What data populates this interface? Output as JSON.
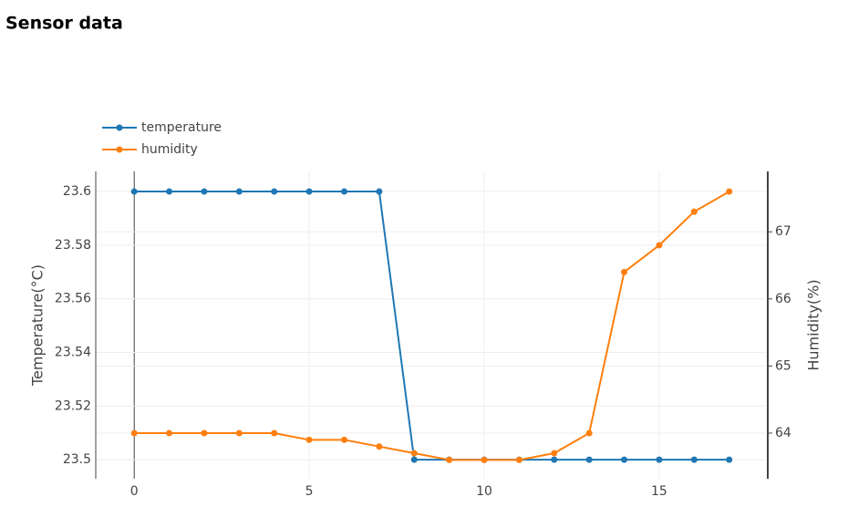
{
  "chart_data": {
    "type": "line",
    "title": "Sensor data",
    "x": [
      0,
      1,
      2,
      3,
      4,
      5,
      6,
      7,
      8,
      9,
      10,
      11,
      12,
      13,
      14,
      15,
      16,
      17
    ],
    "xlim": [
      -1.1,
      18.05
    ],
    "xticks": [
      0,
      5,
      10,
      15
    ],
    "ylabel": "Temperature(°C)",
    "ylim": [
      23.4929,
      23.6075
    ],
    "yticks": [
      23.5,
      23.52,
      23.54,
      23.56,
      23.58,
      23.6
    ],
    "y2label": "Humidity(%)",
    "y2lim": [
      63.32,
      67.9
    ],
    "y2ticks": [
      64,
      65,
      66,
      67
    ],
    "grid": true,
    "legend": "top-left",
    "series": [
      {
        "name": "temperature",
        "color": "#1f77b4",
        "values": [
          23.6,
          23.6,
          23.6,
          23.6,
          23.6,
          23.6,
          23.6,
          23.6,
          23.5,
          23.5,
          23.5,
          23.5,
          23.5,
          23.5,
          23.5,
          23.5,
          23.5,
          23.5
        ]
      },
      {
        "name": "humidity",
        "color": "#ff7f0e",
        "axis": "y2",
        "values": [
          64,
          64,
          64,
          64,
          64,
          63.9,
          63.9,
          63.8,
          63.7,
          63.6,
          63.6,
          63.6,
          63.7,
          64,
          66.4,
          66.8,
          67.3,
          67.6
        ]
      }
    ]
  }
}
